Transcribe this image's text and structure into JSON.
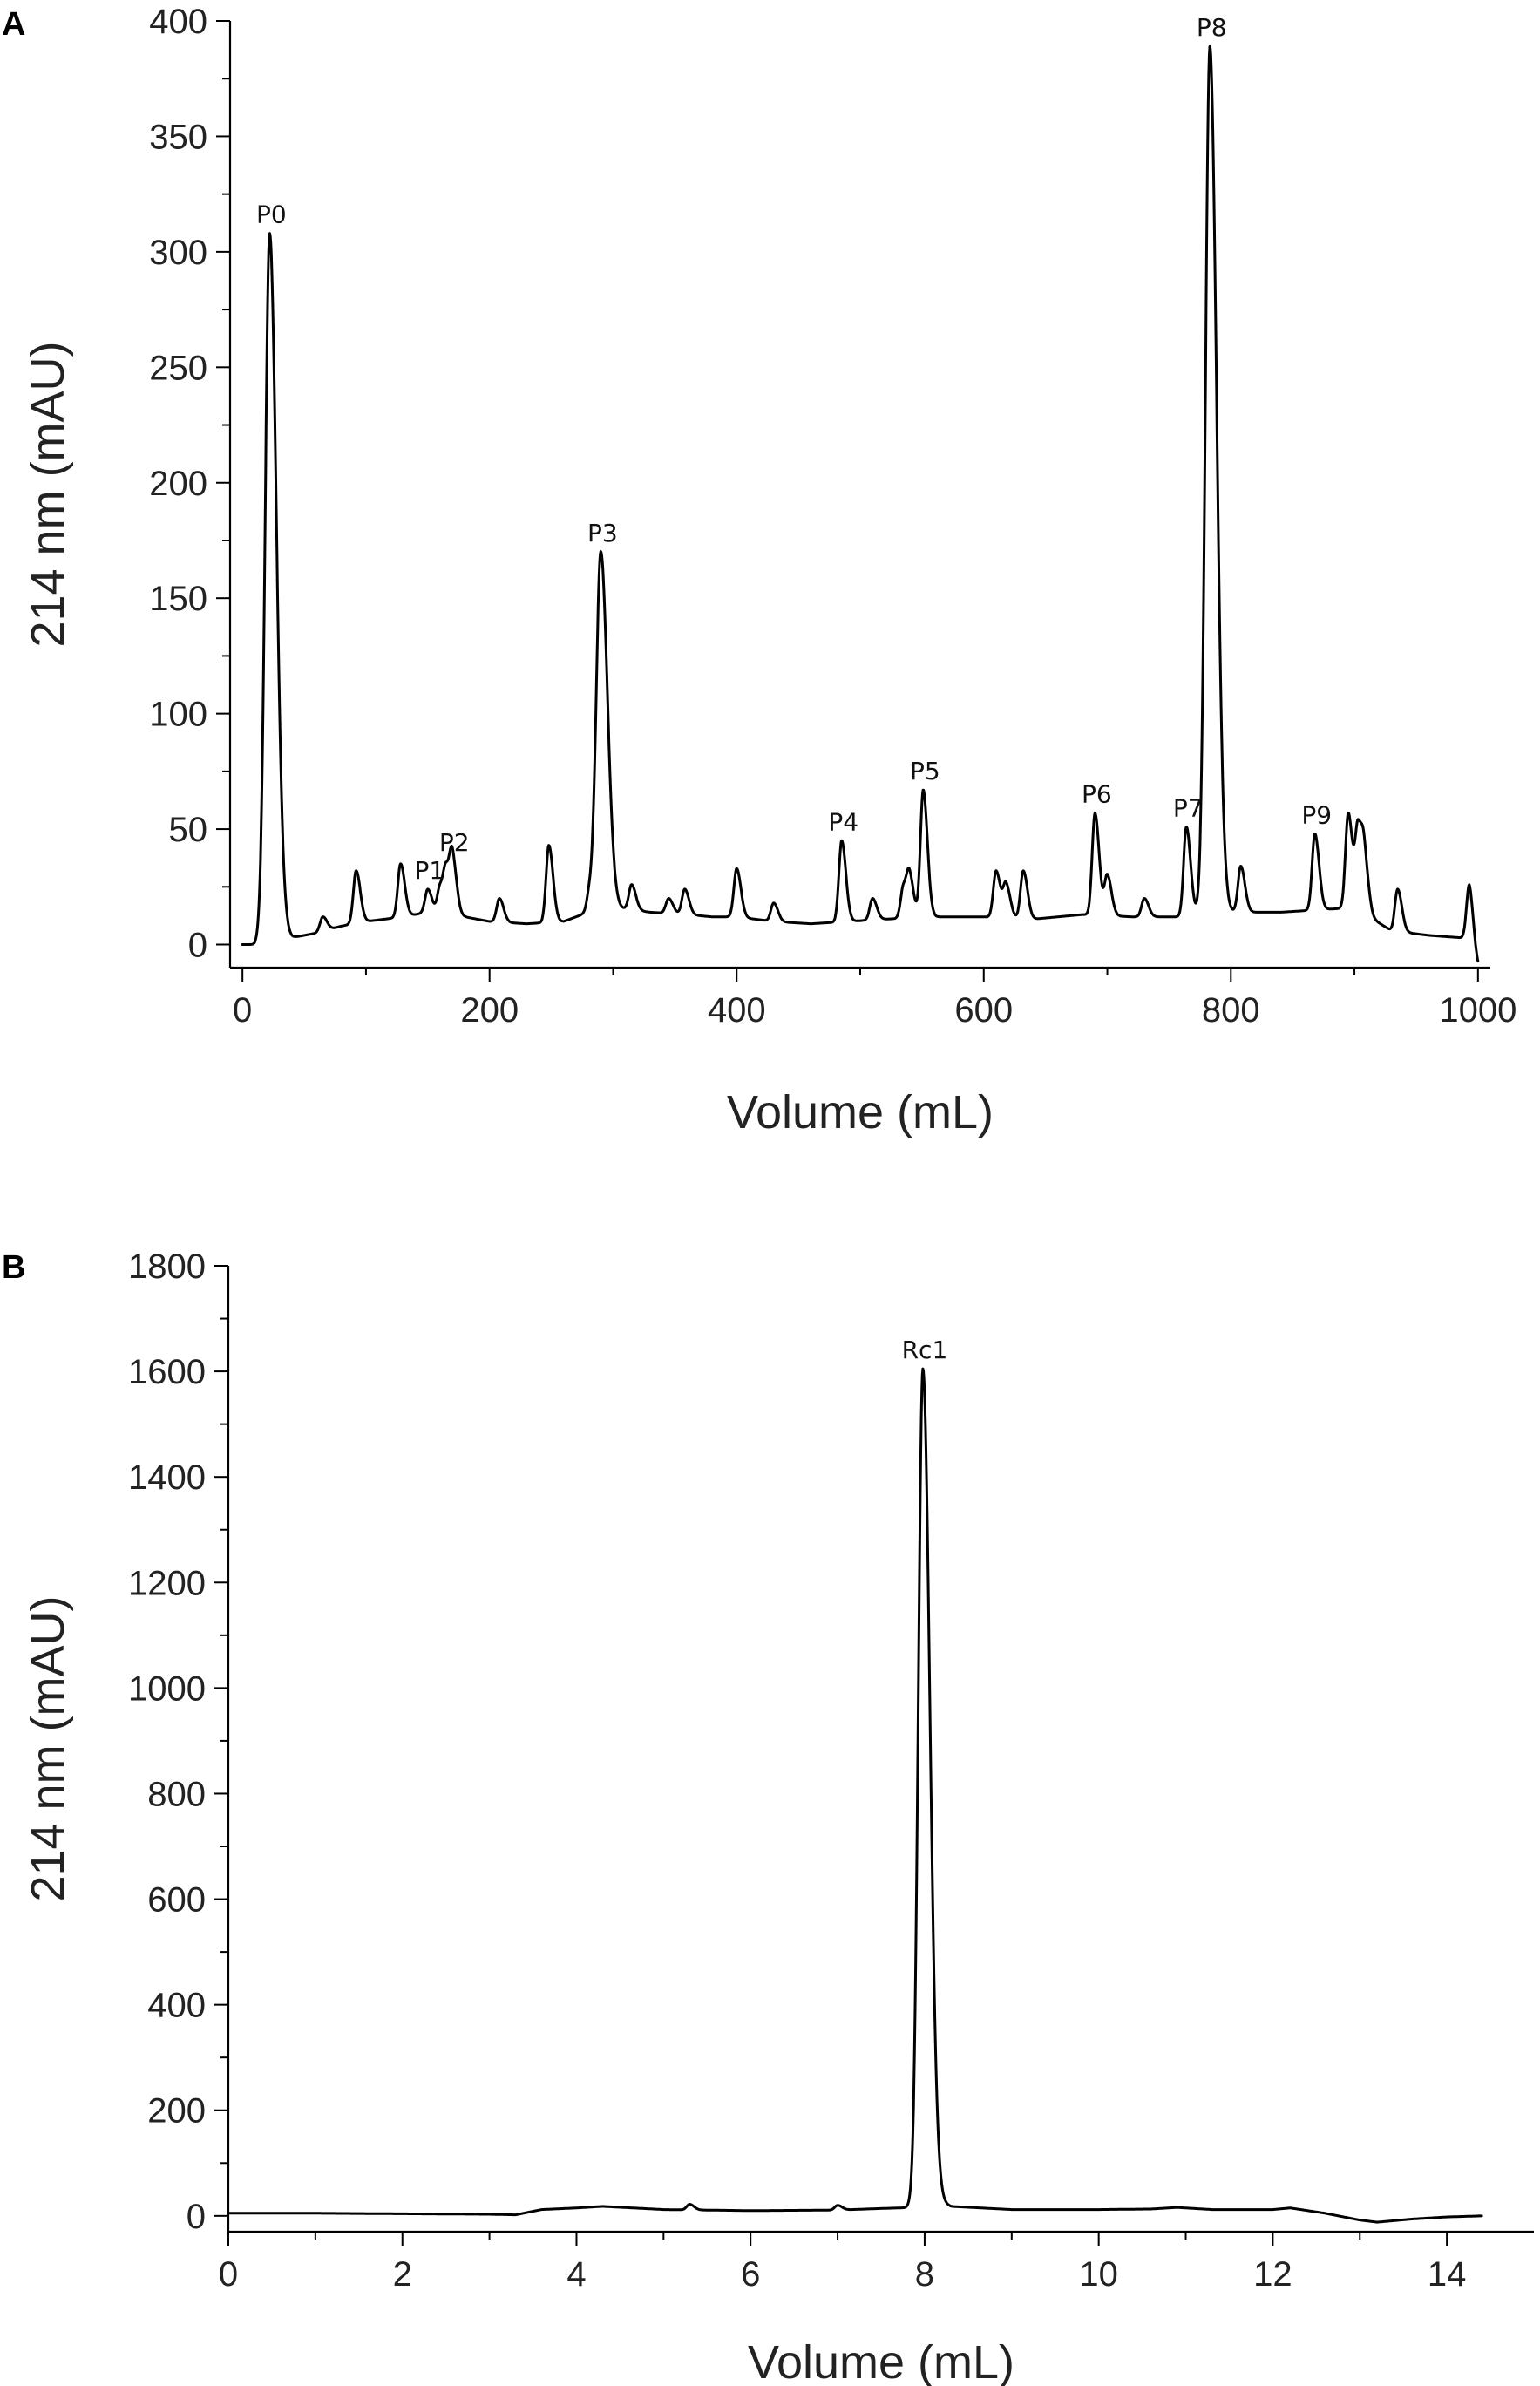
{
  "chart_data": [
    {
      "panel": "A",
      "type": "line",
      "xlabel": "Volume (mL)",
      "ylabel": "214 nm (mAU)",
      "xlim": [
        -10,
        1010
      ],
      "ylim": [
        -10,
        400
      ],
      "xticks": [
        0,
        200,
        400,
        600,
        800,
        1000
      ],
      "yticks": [
        0,
        50,
        100,
        150,
        200,
        250,
        300,
        350,
        400
      ],
      "x_minor_step": 100,
      "y_minor_step": 25,
      "grid": false,
      "baseline": [
        [
          0,
          0
        ],
        [
          10,
          0
        ],
        [
          25,
          5
        ],
        [
          40,
          3
        ],
        [
          60,
          5
        ],
        [
          80,
          8
        ],
        [
          100,
          10
        ],
        [
          130,
          12
        ],
        [
          150,
          14
        ],
        [
          180,
          12
        ],
        [
          200,
          10
        ],
        [
          230,
          9
        ],
        [
          260,
          10
        ],
        [
          280,
          14
        ],
        [
          300,
          16
        ],
        [
          330,
          14
        ],
        [
          360,
          13
        ],
        [
          380,
          12
        ],
        [
          400,
          12
        ],
        [
          430,
          10
        ],
        [
          460,
          9
        ],
        [
          490,
          10
        ],
        [
          520,
          11
        ],
        [
          560,
          12
        ],
        [
          600,
          12
        ],
        [
          640,
          11
        ],
        [
          680,
          13
        ],
        [
          720,
          12
        ],
        [
          760,
          12
        ],
        [
          800,
          14
        ],
        [
          840,
          14
        ],
        [
          870,
          15
        ],
        [
          900,
          16
        ],
        [
          930,
          6
        ],
        [
          960,
          4
        ],
        [
          985,
          3
        ],
        [
          993,
          2
        ],
        [
          998,
          -8
        ],
        [
          1000,
          -10
        ]
      ],
      "peaks": [
        {
          "label": "P0",
          "x": 22,
          "y": 308
        },
        {
          "label": "P1",
          "x": 150,
          "y": 24
        },
        {
          "label": "P2",
          "x": 170,
          "y": 36
        },
        {
          "label": "P3",
          "x": 290,
          "y": 170
        },
        {
          "label": "P4",
          "x": 485,
          "y": 45
        },
        {
          "label": "P5",
          "x": 551,
          "y": 67
        },
        {
          "label": "P6",
          "x": 690,
          "y": 57
        },
        {
          "label": "P7",
          "x": 764,
          "y": 51
        },
        {
          "label": "P8",
          "x": 783,
          "y": 389
        },
        {
          "label": "P9",
          "x": 868,
          "y": 48
        }
      ],
      "minor_peaks": [
        {
          "x": 65,
          "y": 12
        },
        {
          "x": 92,
          "y": 32
        },
        {
          "x": 128,
          "y": 35
        },
        {
          "x": 160,
          "y": 25
        },
        {
          "x": 165,
          "y": 30
        },
        {
          "x": 208,
          "y": 20
        },
        {
          "x": 248,
          "y": 43
        },
        {
          "x": 281,
          "y": 22
        },
        {
          "x": 315,
          "y": 26
        },
        {
          "x": 345,
          "y": 20
        },
        {
          "x": 358,
          "y": 24
        },
        {
          "x": 400,
          "y": 33
        },
        {
          "x": 430,
          "y": 18
        },
        {
          "x": 510,
          "y": 20
        },
        {
          "x": 535,
          "y": 25
        },
        {
          "x": 540,
          "y": 28
        },
        {
          "x": 610,
          "y": 32
        },
        {
          "x": 618,
          "y": 26
        },
        {
          "x": 632,
          "y": 32
        },
        {
          "x": 700,
          "y": 30
        },
        {
          "x": 730,
          "y": 20
        },
        {
          "x": 808,
          "y": 34
        },
        {
          "x": 895,
          "y": 57
        },
        {
          "x": 903,
          "y": 50
        },
        {
          "x": 908,
          "y": 35
        },
        {
          "x": 935,
          "y": 24
        },
        {
          "x": 993,
          "y": 26
        }
      ]
    },
    {
      "panel": "B",
      "type": "line",
      "xlabel": "Volume (mL)",
      "ylabel": "214 nm (mAU)",
      "xlim": [
        0,
        15
      ],
      "ylim": [
        -30,
        1800
      ],
      "xticks": [
        0,
        2,
        4,
        6,
        8,
        10,
        12,
        14
      ],
      "yticks": [
        0,
        200,
        400,
        600,
        800,
        1000,
        1200,
        1400,
        1600,
        1800
      ],
      "x_minor_step": 1,
      "y_minor_step": 100,
      "grid": false,
      "baseline": [
        [
          0,
          5
        ],
        [
          1,
          5
        ],
        [
          2,
          4
        ],
        [
          3,
          3
        ],
        [
          3.3,
          2
        ],
        [
          3.6,
          12
        ],
        [
          4,
          15
        ],
        [
          4.3,
          18
        ],
        [
          5,
          12
        ],
        [
          6,
          10
        ],
        [
          7,
          11
        ],
        [
          7.5,
          14
        ],
        [
          7.9,
          16
        ],
        [
          8.1,
          30
        ],
        [
          8.3,
          18
        ],
        [
          9,
          12
        ],
        [
          10,
          12
        ],
        [
          10.6,
          13
        ],
        [
          10.9,
          16
        ],
        [
          11.3,
          12
        ],
        [
          12,
          12
        ],
        [
          12.2,
          15
        ],
        [
          12.6,
          5
        ],
        [
          13,
          -8
        ],
        [
          13.2,
          -12
        ],
        [
          13.6,
          -6
        ],
        [
          14,
          -2
        ],
        [
          14.4,
          0
        ]
      ],
      "peaks": [
        {
          "label": "Rc1",
          "x": 7.98,
          "y": 1605
        }
      ],
      "minor_peaks": [
        {
          "x": 5.3,
          "y": 22
        },
        {
          "x": 7.0,
          "y": 20
        }
      ]
    }
  ]
}
